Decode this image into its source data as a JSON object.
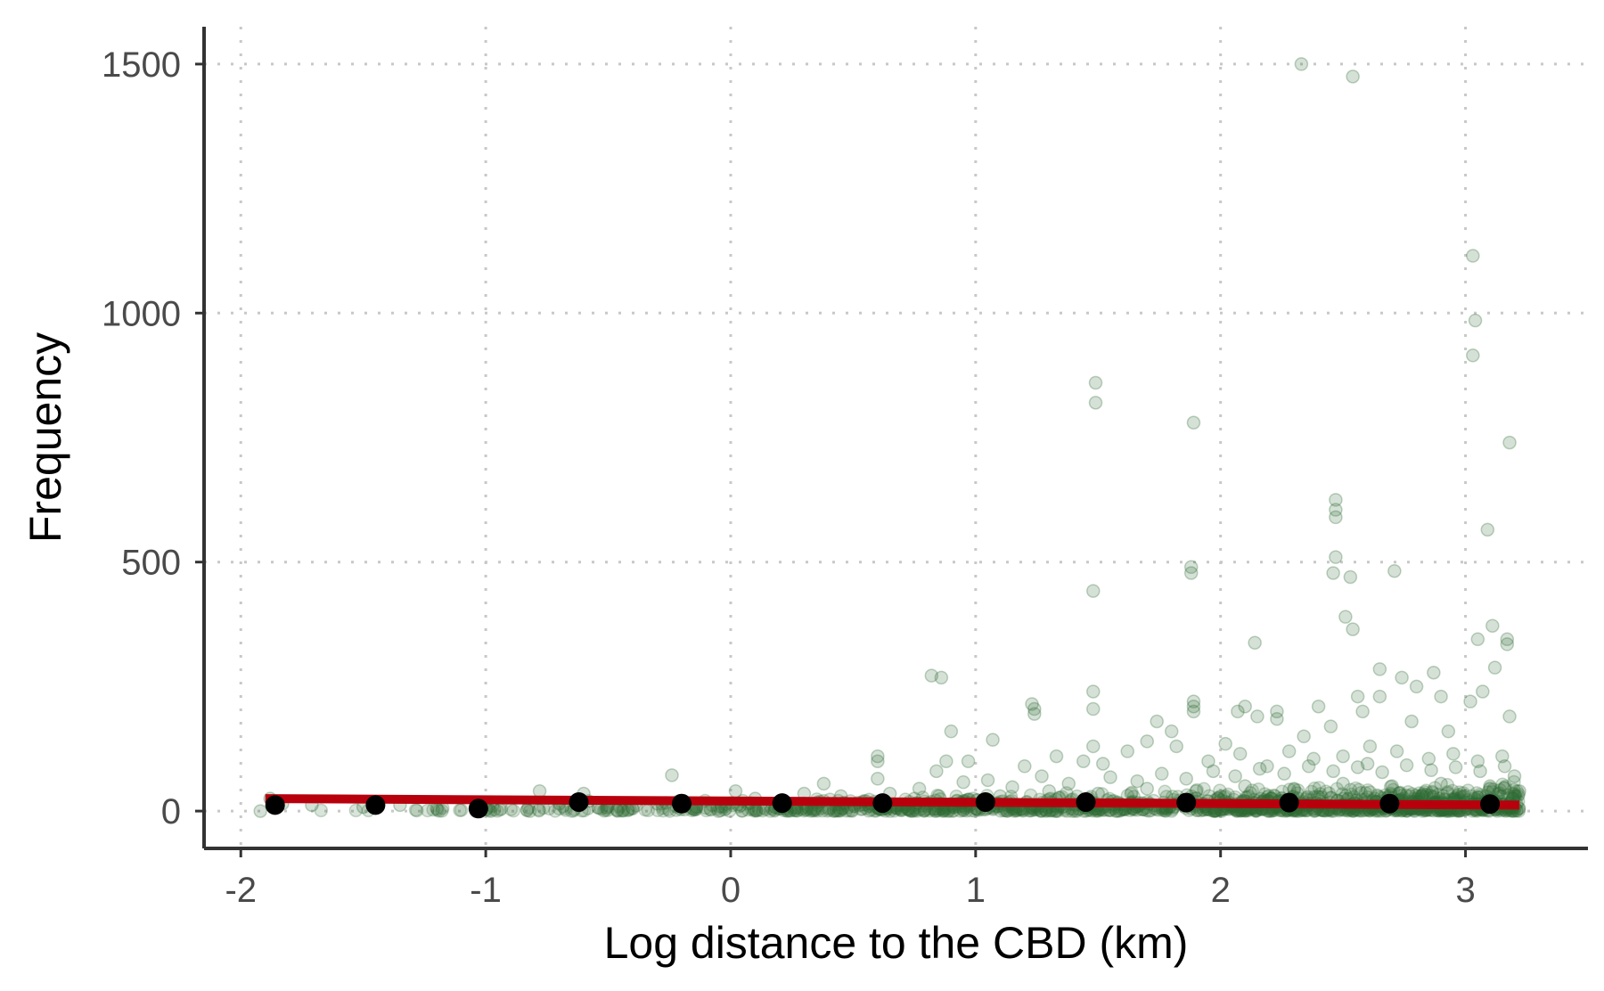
{
  "chart_data": {
    "type": "scatter",
    "title": "",
    "xlabel": "Log distance to the CBD (km)",
    "ylabel": "Frequency",
    "xlim": [
      -2.15,
      3.5
    ],
    "ylim": [
      -75,
      1575
    ],
    "x_ticks": [
      -2,
      -1,
      0,
      1,
      2,
      3
    ],
    "x_tick_labels": [
      "-2",
      "-1",
      "0",
      "1",
      "2",
      "3"
    ],
    "y_ticks": [
      0,
      500,
      1000,
      1500
    ],
    "y_tick_labels": [
      "0",
      "500",
      "1000",
      "1500"
    ],
    "grid": "dotted major gridlines",
    "legend": "none",
    "colors": {
      "points": "#2e6b34",
      "fit_line": "#b8000d",
      "binned_means": "#000000",
      "axis": "#333333",
      "grid": "#c8c8c8"
    },
    "series": [
      {
        "kind": "scatter",
        "points": [
          [
            2.33,
            1500
          ],
          [
            2.54,
            1475
          ],
          [
            3.03,
            1115
          ],
          [
            3.04,
            985
          ],
          [
            3.03,
            915
          ],
          [
            1.49,
            860
          ],
          [
            1.49,
            820
          ],
          [
            1.89,
            780
          ],
          [
            3.18,
            740
          ],
          [
            2.47,
            625
          ],
          [
            2.47,
            605
          ],
          [
            2.47,
            590
          ],
          [
            3.09,
            565
          ],
          [
            2.47,
            510
          ],
          [
            2.53,
            470
          ],
          [
            2.71,
            482
          ],
          [
            1.88,
            490
          ],
          [
            1.88,
            478
          ],
          [
            2.46,
            478
          ],
          [
            1.48,
            442
          ],
          [
            2.51,
            390
          ],
          [
            2.54,
            365
          ],
          [
            3.11,
            372
          ],
          [
            3.05,
            345
          ],
          [
            3.17,
            345
          ],
          [
            3.17,
            335
          ],
          [
            2.14,
            338
          ],
          [
            3.12,
            288
          ],
          [
            2.65,
            285
          ],
          [
            2.74,
            268
          ],
          [
            0.82,
            272
          ],
          [
            0.86,
            268
          ],
          [
            2.87,
            278
          ],
          [
            1.48,
            240
          ],
          [
            1.48,
            205
          ],
          [
            1.23,
            215
          ],
          [
            1.24,
            205
          ],
          [
            1.24,
            195
          ],
          [
            1.89,
            220
          ],
          [
            1.89,
            210
          ],
          [
            1.89,
            200
          ],
          [
            2.07,
            200
          ],
          [
            2.1,
            210
          ],
          [
            2.15,
            190
          ],
          [
            2.23,
            200
          ],
          [
            2.23,
            185
          ],
          [
            2.4,
            210
          ],
          [
            2.56,
            230
          ],
          [
            2.58,
            200
          ],
          [
            2.65,
            230
          ],
          [
            2.8,
            250
          ],
          [
            2.9,
            230
          ],
          [
            3.02,
            220
          ],
          [
            3.07,
            240
          ],
          [
            3.18,
            190
          ],
          [
            0.9,
            160
          ],
          [
            1.07,
            143
          ],
          [
            1.48,
            130
          ],
          [
            1.74,
            180
          ],
          [
            1.8,
            160
          ],
          [
            2.02,
            135
          ],
          [
            2.34,
            150
          ],
          [
            2.45,
            170
          ],
          [
            2.61,
            130
          ],
          [
            2.78,
            180
          ],
          [
            2.93,
            160
          ],
          [
            0.6,
            110
          ],
          [
            0.6,
            100
          ],
          [
            0.84,
            80
          ],
          [
            0.88,
            100
          ],
          [
            0.97,
            100
          ],
          [
            1.2,
            90
          ],
          [
            1.33,
            110
          ],
          [
            1.44,
            100
          ],
          [
            1.52,
            95
          ],
          [
            1.62,
            120
          ],
          [
            1.7,
            140
          ],
          [
            1.82,
            130
          ],
          [
            1.95,
            100
          ],
          [
            2.08,
            115
          ],
          [
            2.19,
            90
          ],
          [
            2.28,
            120
          ],
          [
            2.38,
            105
          ],
          [
            2.5,
            110
          ],
          [
            2.6,
            95
          ],
          [
            2.72,
            120
          ],
          [
            2.85,
            105
          ],
          [
            2.95,
            115
          ],
          [
            3.05,
            100
          ],
          [
            3.15,
            110
          ],
          [
            -0.24,
            72
          ],
          [
            -0.6,
            35
          ],
          [
            -0.78,
            40
          ],
          [
            0.38,
            55
          ],
          [
            0.6,
            65
          ],
          [
            0.77,
            45
          ],
          [
            0.95,
            58
          ],
          [
            1.05,
            62
          ],
          [
            1.15,
            48
          ],
          [
            1.27,
            70
          ],
          [
            1.38,
            55
          ],
          [
            1.55,
            68
          ],
          [
            1.66,
            60
          ],
          [
            1.76,
            75
          ],
          [
            1.86,
            65
          ],
          [
            1.97,
            80
          ],
          [
            2.06,
            70
          ],
          [
            2.16,
            85
          ],
          [
            2.26,
            75
          ],
          [
            2.36,
            90
          ],
          [
            2.46,
            80
          ],
          [
            2.56,
            88
          ],
          [
            2.66,
            78
          ],
          [
            2.76,
            92
          ],
          [
            2.86,
            82
          ],
          [
            2.96,
            88
          ],
          [
            3.06,
            80
          ],
          [
            3.16,
            90
          ],
          [
            3.2,
            70
          ],
          [
            -1.92,
            0
          ],
          [
            -1.88,
            25
          ],
          [
            -1.83,
            15
          ],
          [
            -1.71,
            12
          ],
          [
            -1.5,
            8
          ],
          [
            -1.35,
            12
          ],
          [
            -1.2,
            5
          ],
          [
            -1.04,
            0
          ],
          [
            -0.98,
            0
          ],
          [
            -0.82,
            0
          ],
          [
            -0.7,
            15
          ],
          [
            -0.58,
            20
          ],
          [
            -0.5,
            10
          ],
          [
            -0.4,
            5
          ],
          [
            -0.3,
            15
          ],
          [
            -0.14,
            8
          ],
          [
            -0.05,
            0
          ],
          [
            0.02,
            40
          ],
          [
            0.1,
            25
          ],
          [
            0.2,
            5
          ],
          [
            0.3,
            35
          ],
          [
            0.45,
            30
          ],
          [
            0.55,
            20
          ],
          [
            0.65,
            35
          ],
          [
            0.75,
            25
          ],
          [
            0.85,
            30
          ],
          [
            0.95,
            20
          ],
          [
            1.1,
            30
          ],
          [
            1.3,
            40
          ],
          [
            1.5,
            35
          ],
          [
            1.7,
            45
          ],
          [
            1.9,
            40
          ],
          [
            2.1,
            50
          ],
          [
            2.3,
            45
          ],
          [
            2.5,
            55
          ],
          [
            2.7,
            50
          ],
          [
            2.9,
            55
          ],
          [
            3.1,
            50
          ],
          [
            3.22,
            40
          ]
        ]
      },
      {
        "kind": "binned_means",
        "points": [
          [
            -1.86,
            12
          ],
          [
            -1.45,
            12
          ],
          [
            -1.03,
            5
          ],
          [
            -0.62,
            18
          ],
          [
            -0.2,
            15
          ],
          [
            0.21,
            16
          ],
          [
            0.62,
            16
          ],
          [
            1.04,
            18
          ],
          [
            1.45,
            18
          ],
          [
            1.86,
            17
          ],
          [
            2.28,
            17
          ],
          [
            2.69,
            15
          ],
          [
            3.1,
            14
          ]
        ]
      },
      {
        "kind": "fit_line",
        "points": [
          [
            -1.9,
            25
          ],
          [
            3.22,
            12
          ]
        ]
      }
    ]
  }
}
